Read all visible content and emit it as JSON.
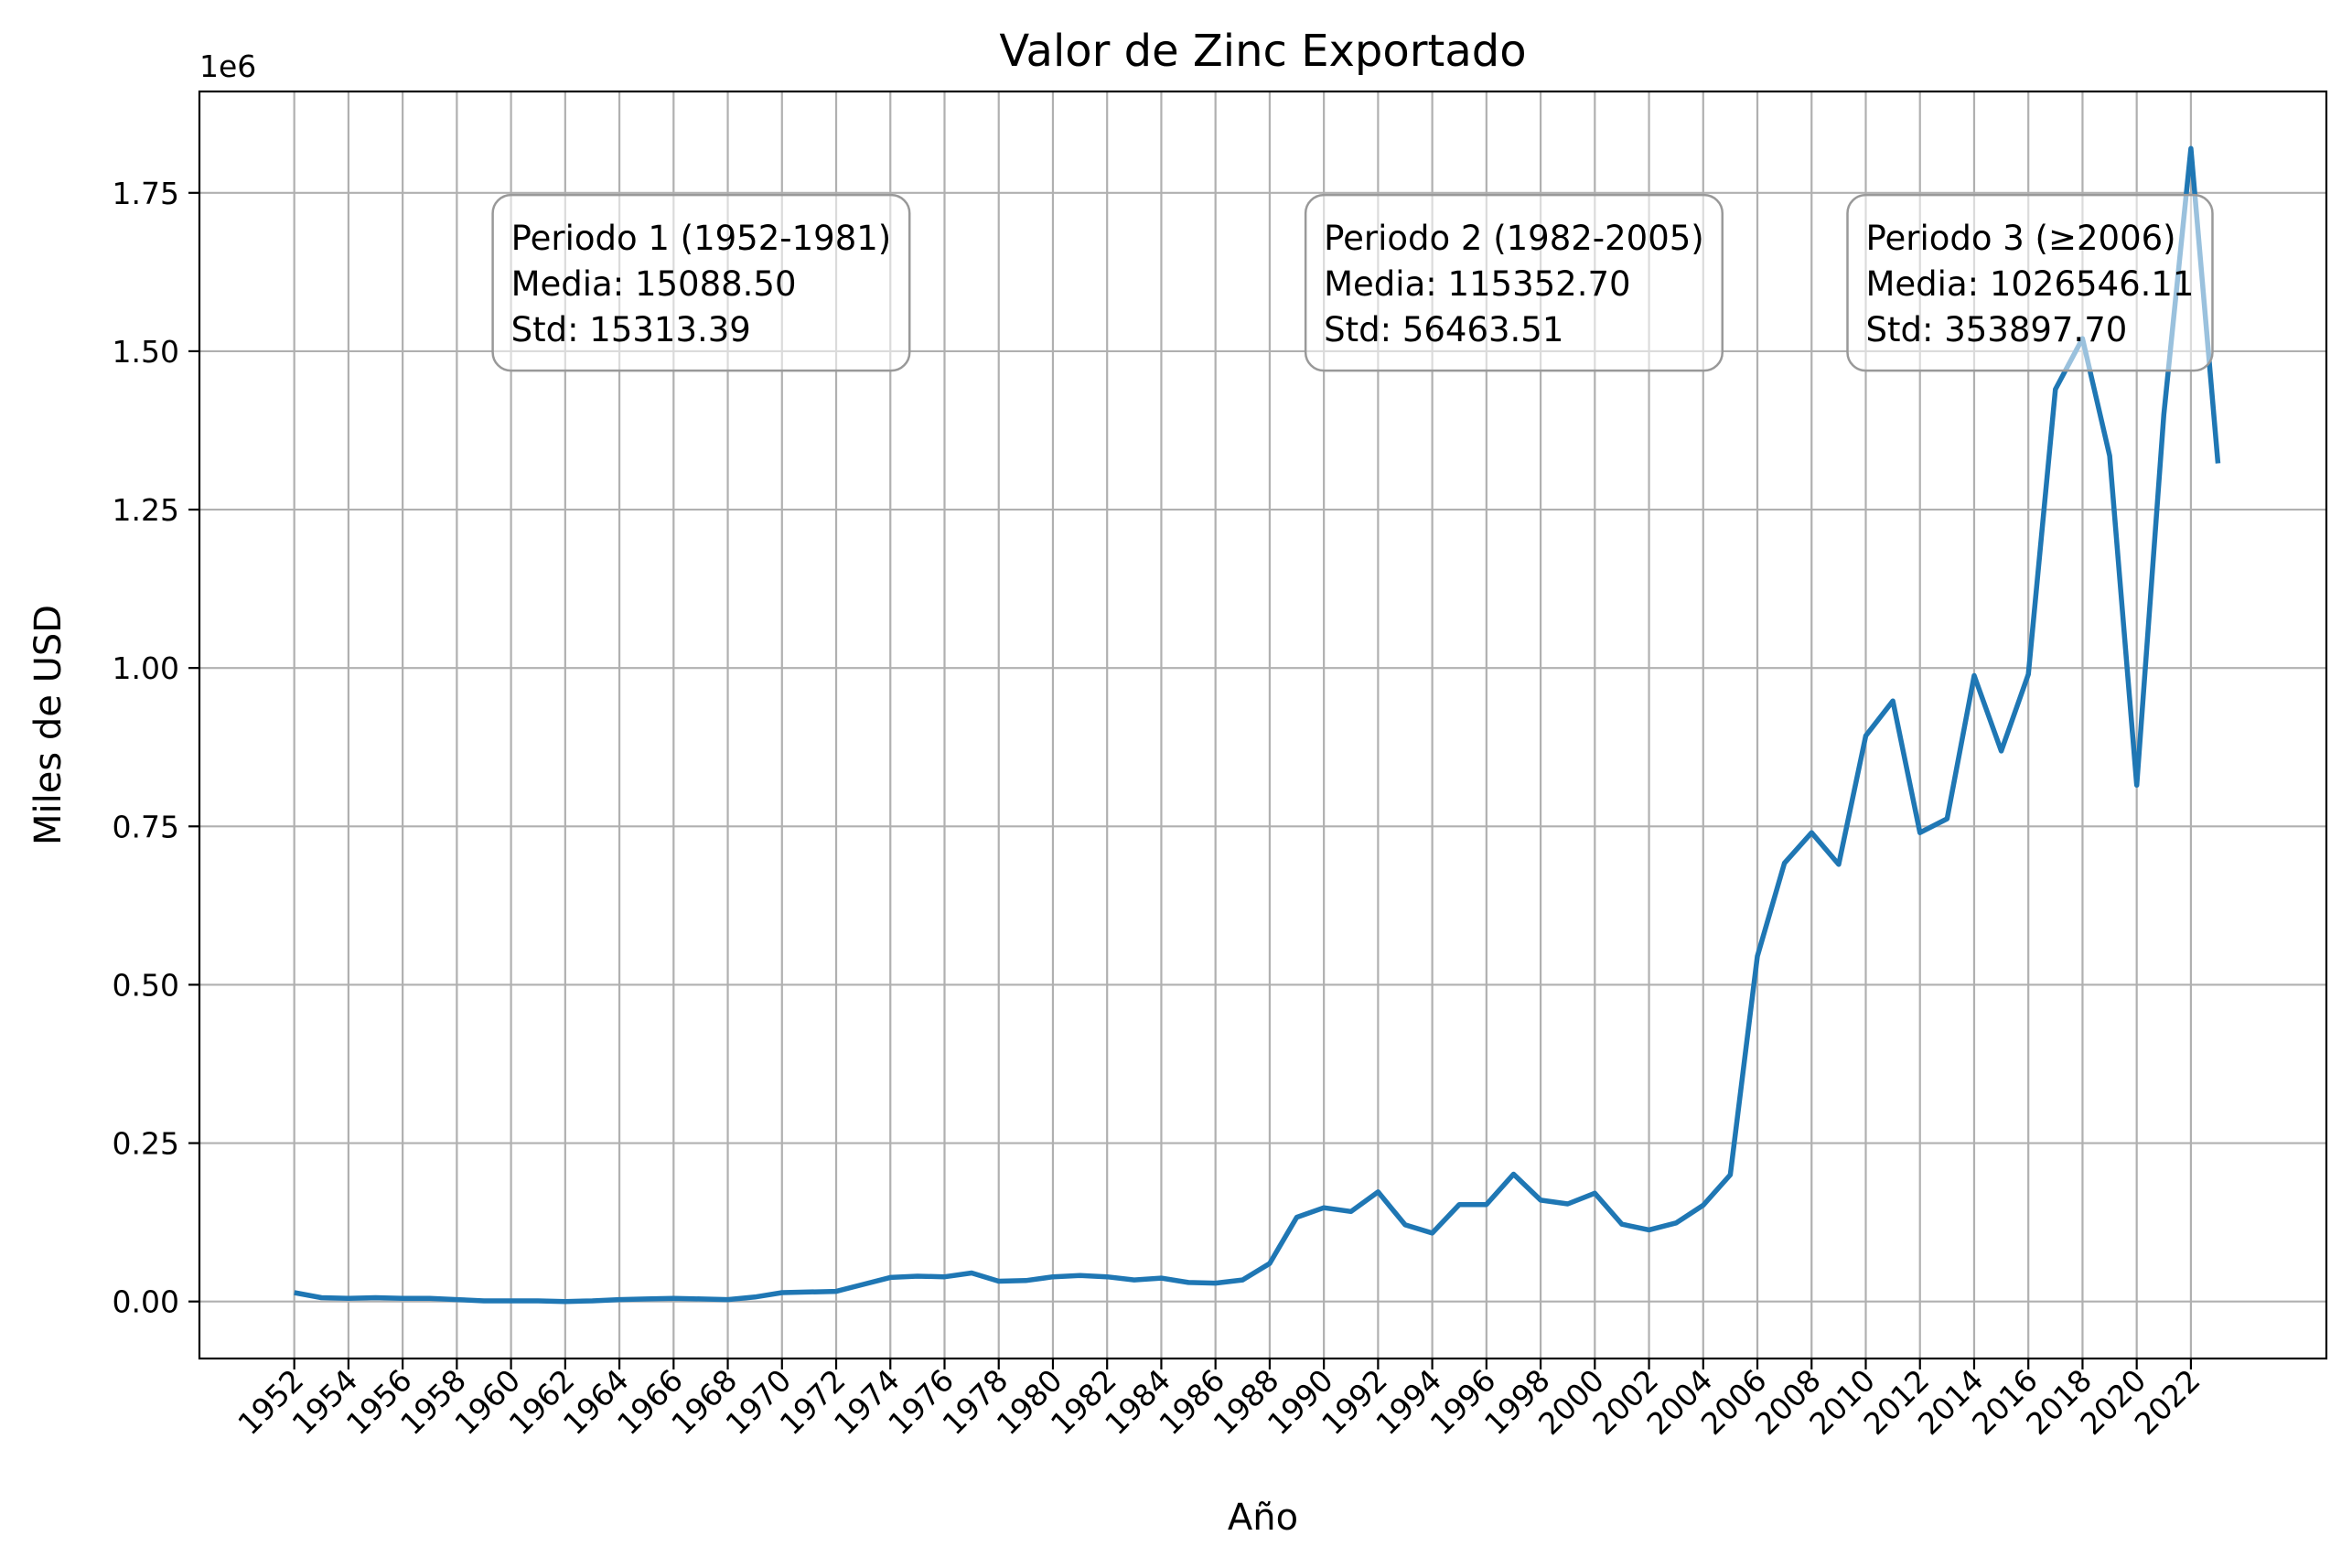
{
  "chart_data": {
    "type": "line",
    "title": "Valor de Zinc Exportado",
    "xlabel": "Año",
    "ylabel": "Miles de USD",
    "y_offset_label": "1e6",
    "xlim": [
      1948.5,
      2027.0
    ],
    "ylim": [
      -0.09,
      1.91
    ],
    "y_scale": 1000000,
    "grid": true,
    "x_ticks": [
      1952,
      1954,
      1956,
      1958,
      1960,
      1962,
      1964,
      1966,
      1968,
      1970,
      1972,
      1974,
      1976,
      1978,
      1980,
      1982,
      1984,
      1986,
      1988,
      1990,
      1992,
      1994,
      1996,
      1998,
      2000,
      2002,
      2004,
      2006,
      2008,
      2010,
      2012,
      2014,
      2016,
      2018,
      2020,
      2022
    ],
    "y_ticks": [
      0.0,
      0.25,
      0.5,
      0.75,
      1.0,
      1.25,
      1.5,
      1.75
    ],
    "y_tick_labels": [
      "0.00",
      "0.25",
      "0.50",
      "0.75",
      "1.00",
      "1.25",
      "1.50",
      "1.75"
    ],
    "series": [
      {
        "color": "#1f77b4",
        "x": [
          1952,
          1953,
          1954,
          1955,
          1956,
          1957,
          1958,
          1959,
          1960,
          1961,
          1962,
          1963,
          1964,
          1965,
          1966,
          1967,
          1968,
          1969,
          1970,
          1971,
          1972,
          1973,
          1974,
          1975,
          1976,
          1977,
          1978,
          1979,
          1980,
          1981,
          1982,
          1983,
          1984,
          1985,
          1986,
          1987,
          1988,
          1989,
          1990,
          1991,
          1992,
          1993,
          1994,
          1995,
          1996,
          1997,
          1998,
          1999,
          2000,
          2001,
          2002,
          2003,
          2004,
          2005,
          2006,
          2007,
          2008,
          2009,
          2010,
          2011,
          2012,
          2013,
          2014,
          2015,
          2016,
          2017,
          2018,
          2019,
          2020,
          2021,
          2022,
          2023
        ],
        "y": [
          0.014,
          0.006,
          0.005,
          0.006,
          0.005,
          0.005,
          0.003,
          0.001,
          0.001,
          0.001,
          0.0,
          0.001,
          0.003,
          0.004,
          0.005,
          0.004,
          0.003,
          0.007,
          0.014,
          0.015,
          0.016,
          0.027,
          0.038,
          0.04,
          0.039,
          0.045,
          0.032,
          0.033,
          0.039,
          0.041,
          0.039,
          0.034,
          0.037,
          0.03,
          0.029,
          0.034,
          0.06,
          0.133,
          0.148,
          0.142,
          0.173,
          0.121,
          0.108,
          0.153,
          0.153,
          0.201,
          0.16,
          0.154,
          0.171,
          0.122,
          0.113,
          0.124,
          0.152,
          0.2,
          0.545,
          0.692,
          0.74,
          0.69,
          0.893,
          0.948,
          0.74,
          0.762,
          0.988,
          0.869,
          0.99,
          1.44,
          1.52,
          1.335,
          0.815,
          1.4,
          1.82,
          1.323
        ]
      }
    ],
    "annotations": [
      {
        "lines": [
          "Periodo 1 (1952-1981)",
          "Media: 15088.50",
          "Std: 15313.39"
        ],
        "anchor_x": 1960,
        "anchor_y": 1.66
      },
      {
        "lines": [
          "Periodo 2 (1982-2005)",
          "Media: 115352.70",
          "Std: 56463.51"
        ],
        "anchor_x": 1990,
        "anchor_y": 1.66
      },
      {
        "lines": [
          "Periodo 3 (≥2006)",
          "Media: 1026546.11",
          "Std: 353897.70"
        ],
        "anchor_x": 2010,
        "anchor_y": 1.66
      }
    ]
  }
}
